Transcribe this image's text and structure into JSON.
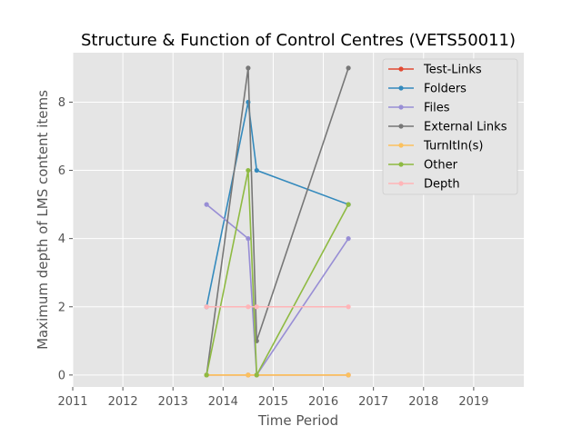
{
  "chart_data": {
    "type": "line",
    "title": "Structure & Function of Control Centres (VETS50011)",
    "xlabel": "Time Period",
    "ylabel": "Maximum depth of LMS content items",
    "xlim": [
      2011,
      2020
    ],
    "ylim": [
      -0.35,
      9.45
    ],
    "x_ticks": [
      "2011",
      "2012",
      "2013",
      "2014",
      "2015",
      "2016",
      "2017",
      "2018",
      "2019"
    ],
    "y_ticks": [
      "0",
      "2",
      "4",
      "6",
      "8"
    ],
    "grid": true,
    "legend_position": "upper right",
    "series": [
      {
        "name": "Test-Links",
        "color": "#E24A33",
        "x": [
          2013.67,
          2014.5,
          2014.67,
          2016.5
        ],
        "y": [
          0,
          0,
          0,
          0
        ]
      },
      {
        "name": "Folders",
        "color": "#348ABD",
        "x": [
          2013.67,
          2014.5,
          2014.67,
          2016.5
        ],
        "y": [
          2,
          8,
          6,
          5
        ]
      },
      {
        "name": "Files",
        "color": "#988ED5",
        "x": [
          2013.67,
          2014.5,
          2014.67,
          2016.5
        ],
        "y": [
          5,
          4,
          0,
          4
        ]
      },
      {
        "name": "External Links",
        "color": "#777777",
        "x": [
          2013.67,
          2014.5,
          2014.67,
          2016.5
        ],
        "y": [
          0,
          9,
          1,
          9
        ]
      },
      {
        "name": "TurnItIn(s)",
        "color": "#FBC15E",
        "x": [
          2013.67,
          2014.5,
          2014.67,
          2016.5
        ],
        "y": [
          0,
          0,
          0,
          0
        ]
      },
      {
        "name": "Other",
        "color": "#8EBA42",
        "x": [
          2013.67,
          2014.5,
          2014.67,
          2016.5
        ],
        "y": [
          0,
          6,
          0,
          5
        ]
      },
      {
        "name": "Depth",
        "color": "#FFB5B8",
        "x": [
          2013.67,
          2014.5,
          2014.67,
          2016.5
        ],
        "y": [
          2,
          2,
          2,
          2
        ]
      }
    ]
  }
}
